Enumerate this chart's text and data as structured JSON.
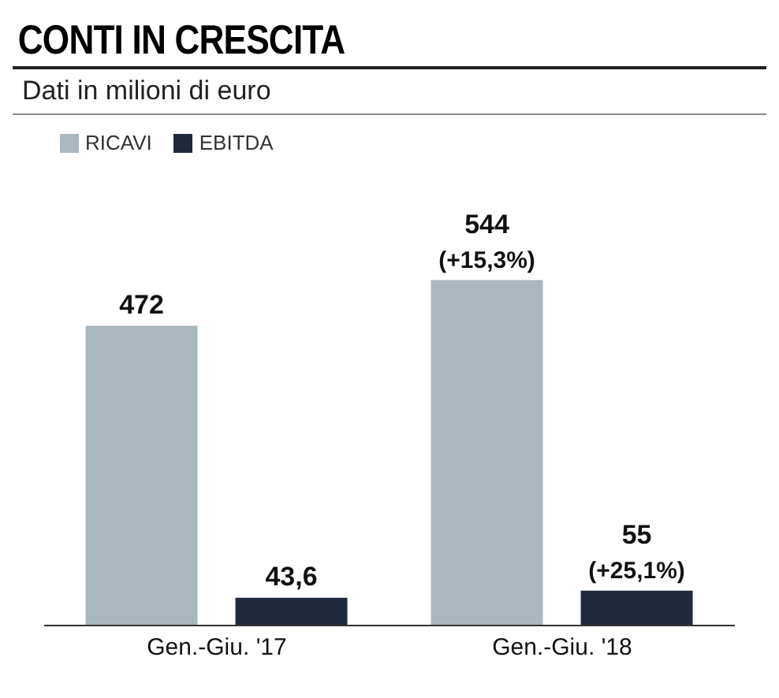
{
  "chart_data": {
    "type": "bar",
    "title": "CONTI IN CRESCITA",
    "subtitle": "Dati in milioni di euro",
    "categories": [
      "Gen.-Giu. '17",
      "Gen.-Giu. '18"
    ],
    "series": [
      {
        "name": "RICAVI",
        "color": "#a9b7bf",
        "values": [
          472,
          544
        ],
        "value_labels": [
          "472",
          "544"
        ]
      },
      {
        "name": "EBITDA",
        "color": "#1f2b3c",
        "values": [
          43.6,
          55
        ],
        "value_labels": [
          "43,6",
          "55"
        ]
      }
    ],
    "annotations": [
      "(+15,3%)",
      "(+25,1%)"
    ],
    "legend": "top left"
  }
}
